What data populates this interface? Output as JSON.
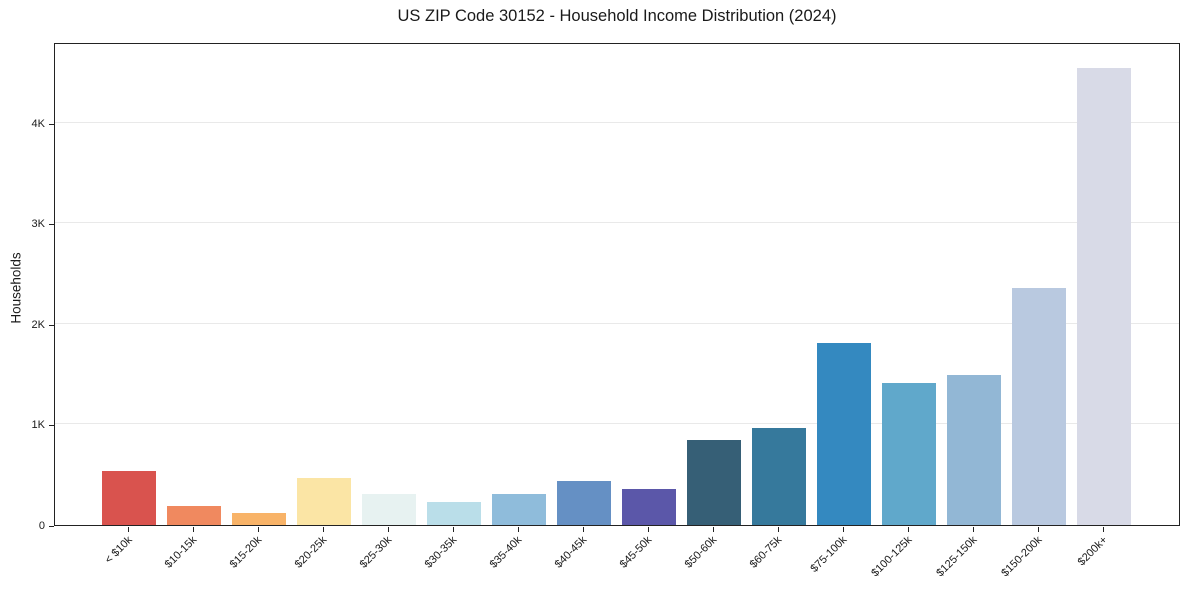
{
  "chart_data": {
    "type": "bar",
    "title": "US ZIP Code 30152 - Household Income Distribution (2024)",
    "xlabel": "",
    "ylabel": "Households",
    "categories": [
      "< $10k",
      "$10-15k",
      "$15-20k",
      "$20-25k",
      "$25-30k",
      "$30-35k",
      "$35-40k",
      "$40-45k",
      "$45-50k",
      "$50-60k",
      "$60-75k",
      "$75-100k",
      "$100-125k",
      "$125-150k",
      "$150-200k",
      "$200k+"
    ],
    "values": [
      540,
      190,
      120,
      465,
      310,
      230,
      310,
      435,
      355,
      845,
      960,
      1805,
      1410,
      1490,
      2360,
      4545
    ],
    "bar_colors": [
      "#d9534e",
      "#f0895f",
      "#f8b368",
      "#fbe5a5",
      "#e7f2f1",
      "#badee9",
      "#8fbcdb",
      "#6590c4",
      "#5b57a9",
      "#365f76",
      "#36799c",
      "#3489c0",
      "#60a8cb",
      "#92b7d5",
      "#b9c9e0",
      "#d8dae7"
    ],
    "ytick_values": [
      0,
      1000,
      2000,
      3000,
      4000
    ],
    "ytick_labels": [
      "0",
      "1K",
      "2K",
      "3K",
      "4K"
    ],
    "ylim": [
      0,
      4800
    ],
    "grid": "horizontal",
    "legend": "none",
    "background": "#ffffff",
    "axis_color": "#222222",
    "grid_color": "#e9e9e9",
    "text_color": "#1a1a1a"
  }
}
